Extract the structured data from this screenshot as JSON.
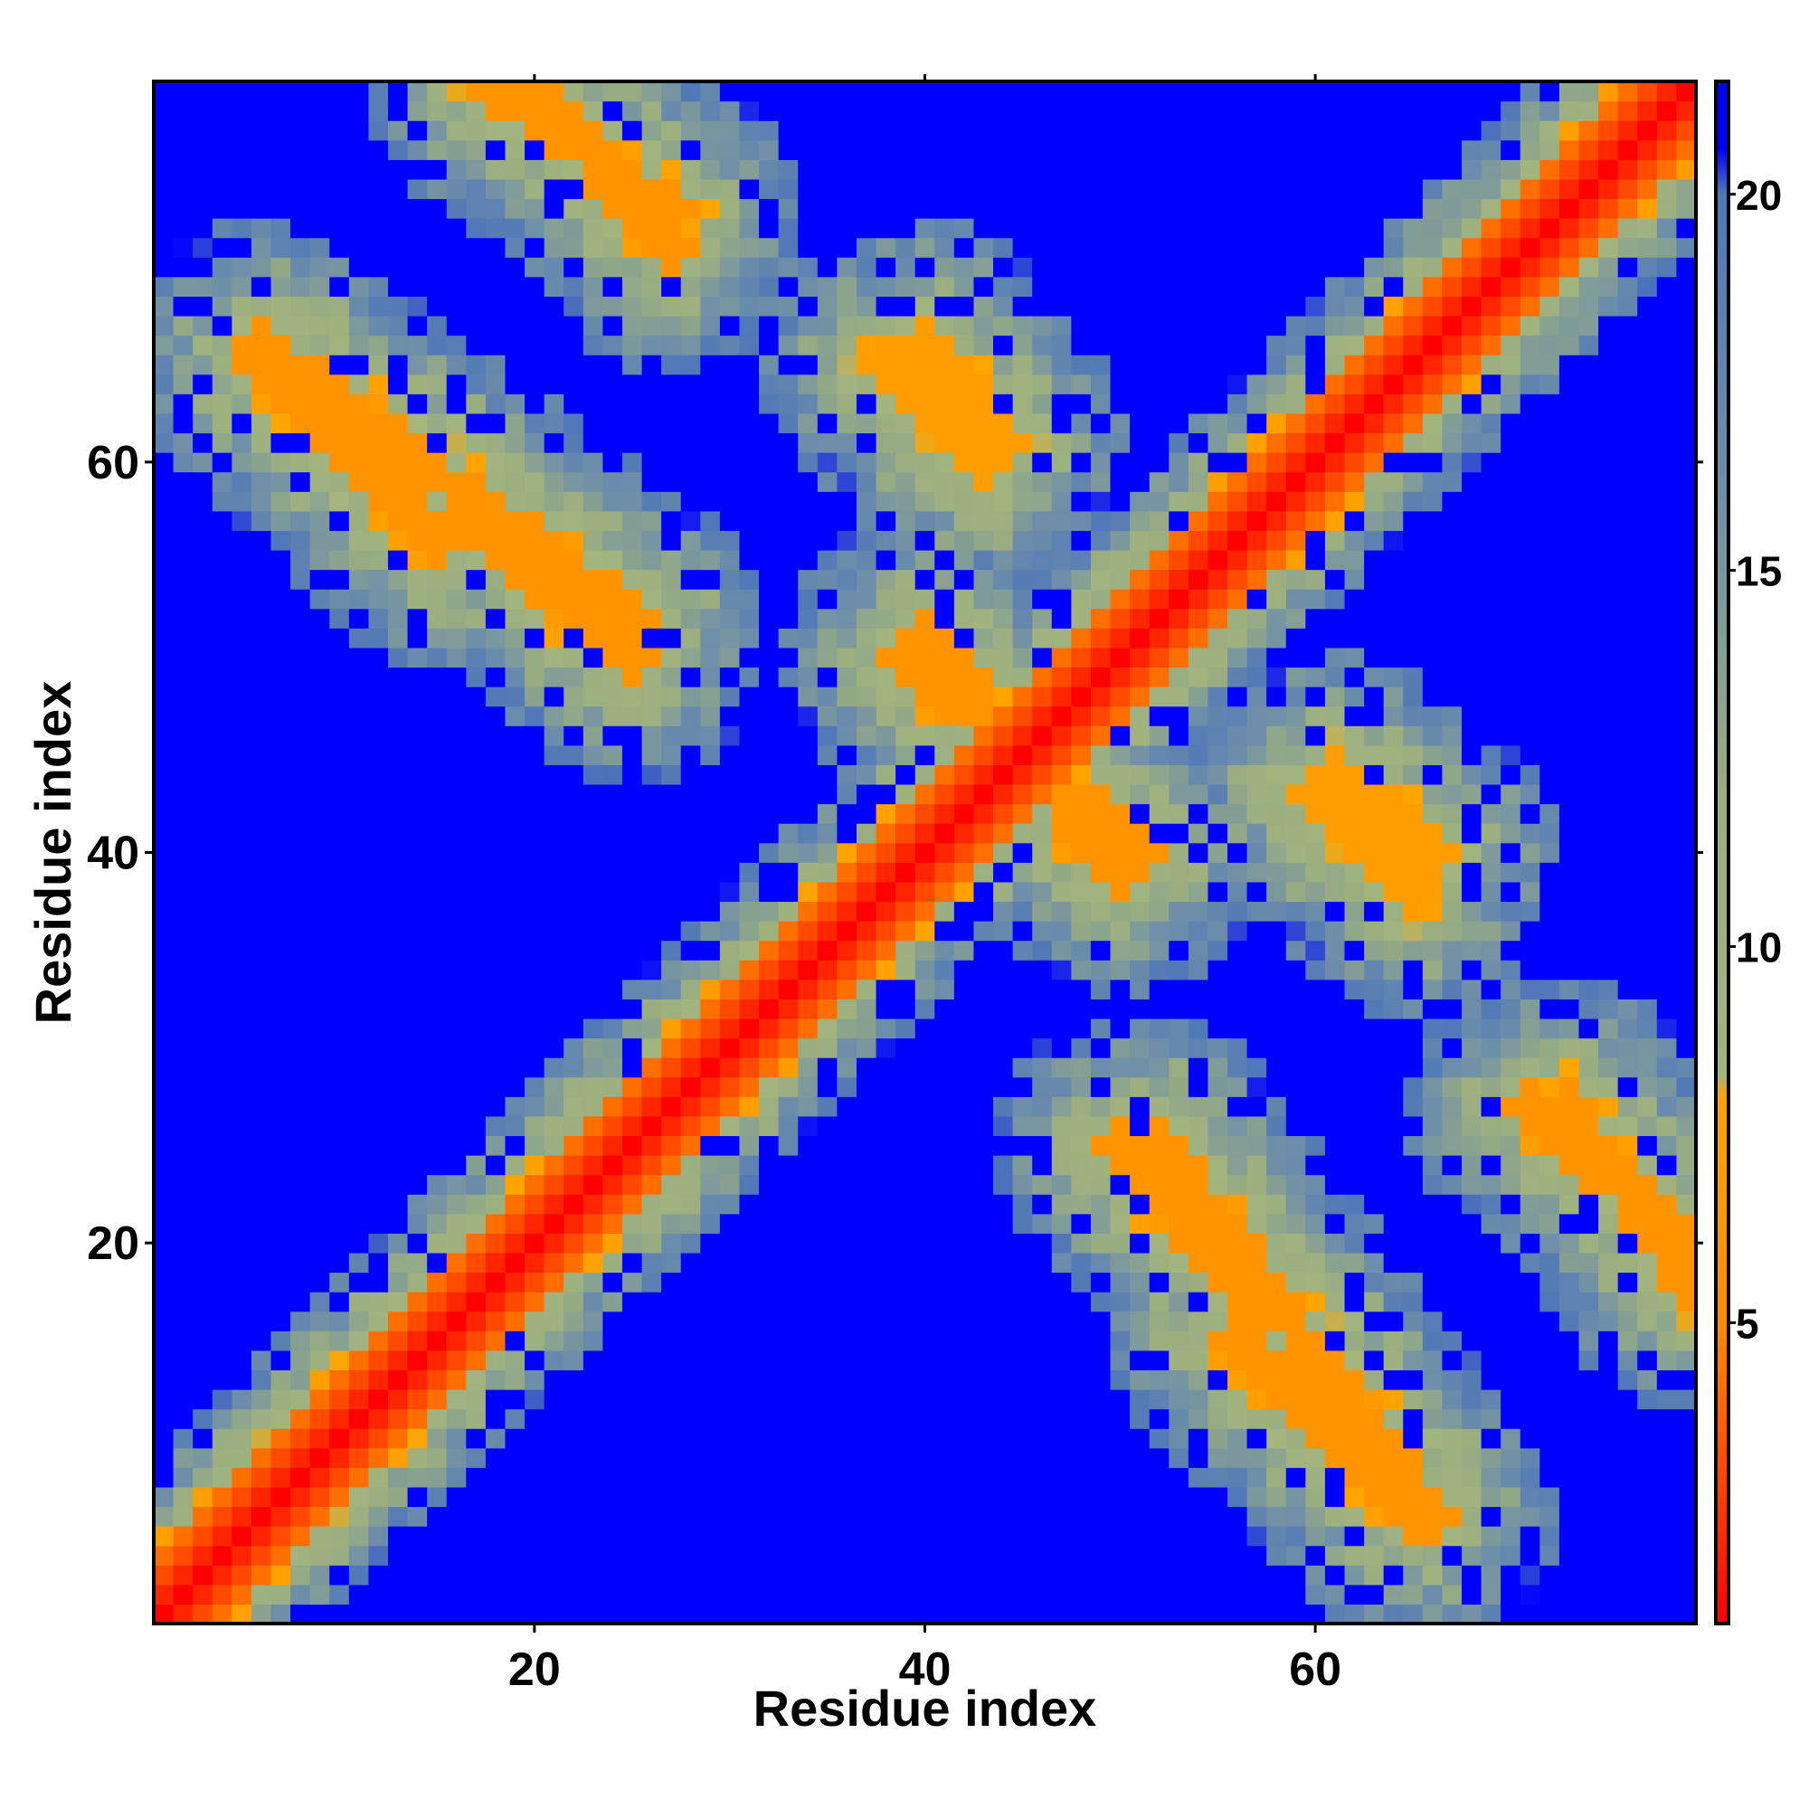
{
  "chart_data": {
    "type": "heatmap",
    "title": "",
    "xlabel": "Residue index",
    "ylabel": "Residue index",
    "n_residues": 79,
    "xlim": [
      0.5,
      79.5
    ],
    "ylim": [
      0.5,
      79.5
    ],
    "x_ticks": [
      20,
      40,
      60
    ],
    "y_ticks": [
      20,
      40,
      60
    ],
    "x_tick_labels": [
      "20",
      "40",
      "60"
    ],
    "y_tick_labels": [
      "20",
      "40",
      "60"
    ],
    "colorbar": {
      "min": 1,
      "max": 21.5,
      "ticks": [
        5,
        10,
        15,
        20
      ],
      "tick_labels": [
        "5",
        "10",
        "15",
        "20"
      ],
      "stops": [
        {
          "value": 1,
          "color": "#ff0000"
        },
        {
          "value": 5,
          "color": "#ff8c00"
        },
        {
          "value": 8,
          "color": "#ffa500"
        },
        {
          "value": 8.3,
          "color": "#a3b57e"
        },
        {
          "value": 12,
          "color": "#9aae80"
        },
        {
          "value": 16,
          "color": "#6f8fa8"
        },
        {
          "value": 20,
          "color": "#5077b8"
        },
        {
          "value": 20.6,
          "color": "#0000ff"
        },
        {
          "value": 21.5,
          "color": "#0000ff"
        }
      ]
    },
    "grid": false,
    "legend": "colorbar-right",
    "cell_values": "symmetric residue-residue distance matrix (~1 on diagonal, saturating at ~21 far from contacts)",
    "bands": [
      {
        "from": [
          3,
          3
        ],
        "to": [
          79,
          79
        ],
        "kind": "main-diagonal",
        "value": 1
      },
      {
        "from": [
          6,
          66
        ],
        "to": [
          25,
          52
        ],
        "kind": "antiparallel-contact",
        "value": 6
      },
      {
        "from": [
          18,
          79
        ],
        "to": [
          27,
          73
        ],
        "kind": "antiparallel-contact",
        "value": 6
      },
      {
        "from": [
          40,
          66
        ],
        "to": [
          44,
          61
        ],
        "kind": "antiparallel-contact",
        "value": 7
      },
      {
        "from": [
          40,
          51
        ],
        "to": [
          50,
          39
        ],
        "kind": "antiparallel-contact",
        "value": 6
      },
      {
        "from": [
          50,
          25
        ],
        "to": [
          57,
          17
        ],
        "kind": "antiparallel-contact",
        "value": 6
      },
      {
        "from": [
          56,
          15
        ],
        "to": [
          65,
          6
        ],
        "kind": "antiparallel-contact",
        "value": 6
      },
      {
        "from": [
          60,
          43
        ],
        "to": [
          65,
          38
        ],
        "kind": "antiparallel-contact",
        "value": 7
      },
      {
        "from": [
          71,
          27
        ],
        "to": [
          79,
          20
        ],
        "kind": "antiparallel-contact",
        "value": 6
      }
    ]
  }
}
